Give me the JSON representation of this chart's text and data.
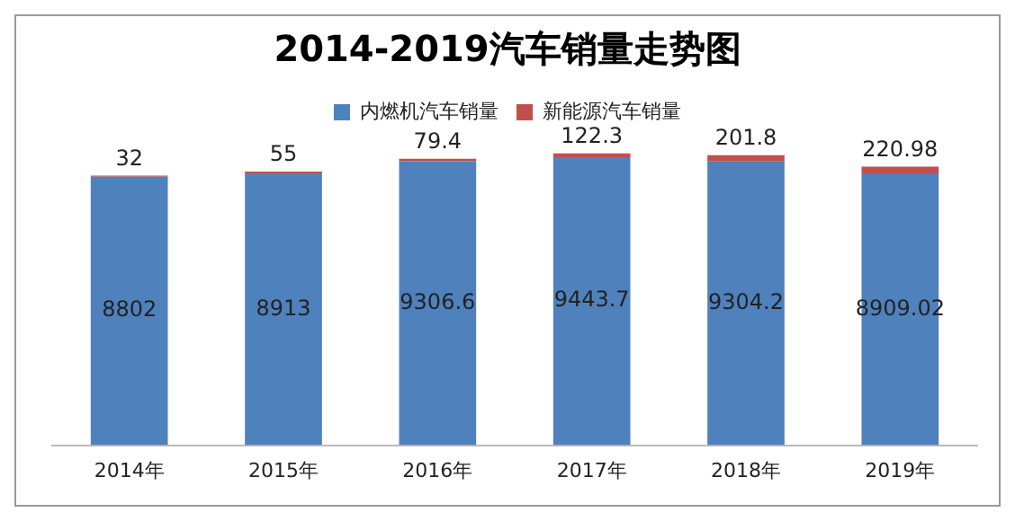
{
  "chart_data": {
    "type": "bar",
    "title": "2014-2019汽车销量走势图",
    "categories": [
      "2014年",
      "2015年",
      "2016年",
      "2017年",
      "2018年",
      "2019年"
    ],
    "series": [
      {
        "name": "内燃机汽车销量",
        "color": "#4f81bd",
        "values": [
          8802,
          8913,
          9306.6,
          9443.7,
          9304.2,
          8909.02
        ]
      },
      {
        "name": "新能源汽车销量",
        "color": "#c0504d",
        "values": [
          32,
          55,
          79.4,
          122.3,
          201.8,
          220.98
        ]
      }
    ],
    "stacked": true,
    "tick_labels": "x",
    "data_labels": true,
    "legend": "top",
    "grid": false
  }
}
